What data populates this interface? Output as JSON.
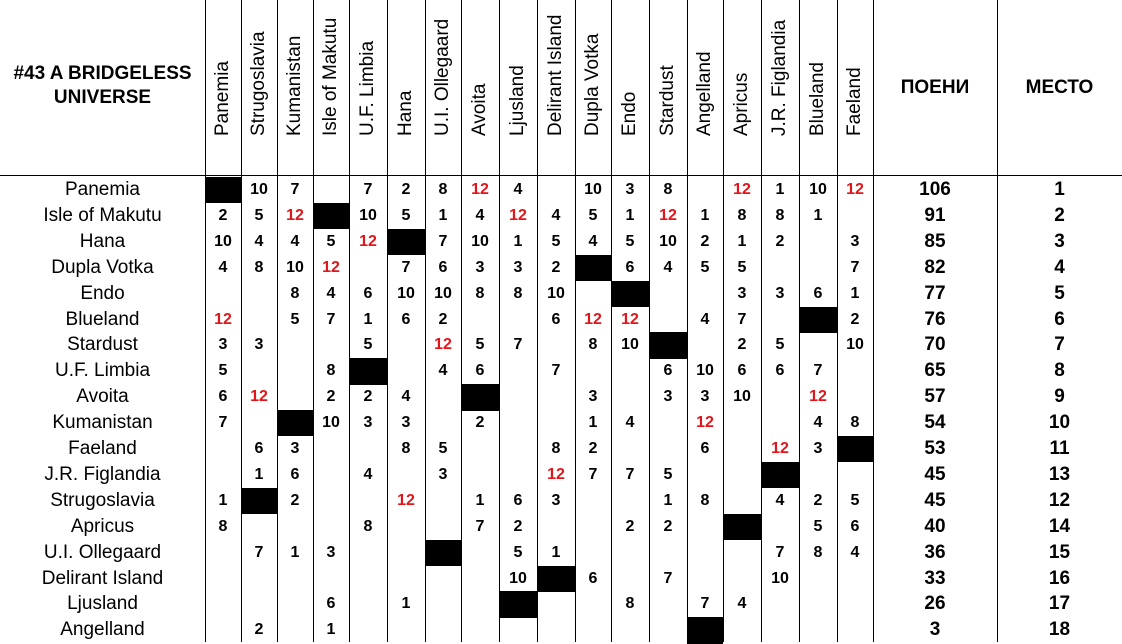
{
  "title": "#43 A BRIDGELESS UNIVERSE",
  "points_header": "ПОЕНИ",
  "place_header": "МЕСТО",
  "columns": [
    "Panemia",
    "Strugoslavia",
    "Kumanistan",
    "Isle of Makutu",
    "U.F. Limbia",
    "Hana",
    "U.I. Ollegaard",
    "Avoita",
    "Ljusland",
    "Delirant Island",
    "Dupla Votka",
    "Endo",
    "Stardust",
    "Angelland",
    "Apricus",
    "J.R. Figlandia",
    "Blueland",
    "Faeland"
  ],
  "rows": [
    {
      "name": "Panemia",
      "self_col": 0,
      "scores": [
        "",
        "10",
        "7",
        "",
        "7",
        "2",
        "8",
        "12",
        "4",
        "",
        "10",
        "3",
        "8",
        "",
        "12",
        "1",
        "10",
        "12"
      ],
      "total": "106",
      "place": "1"
    },
    {
      "name": "Isle of Makutu",
      "self_col": 3,
      "scores": [
        "2",
        "5",
        "12",
        "",
        "10",
        "5",
        "1",
        "4",
        "12",
        "4",
        "5",
        "1",
        "12",
        "1",
        "8",
        "8",
        "1",
        ""
      ],
      "total": "91",
      "place": "2"
    },
    {
      "name": "Hana",
      "self_col": 5,
      "scores": [
        "10",
        "4",
        "4",
        "5",
        "12",
        "",
        "7",
        "10",
        "1",
        "5",
        "4",
        "5",
        "10",
        "2",
        "1",
        "2",
        "",
        "3"
      ],
      "total": "85",
      "place": "3"
    },
    {
      "name": "Dupla Votka",
      "self_col": 10,
      "scores": [
        "4",
        "8",
        "10",
        "12",
        "",
        "7",
        "6",
        "3",
        "3",
        "2",
        "",
        "6",
        "4",
        "5",
        "5",
        "",
        "",
        "7"
      ],
      "total": "82",
      "place": "4"
    },
    {
      "name": "Endo",
      "self_col": 11,
      "scores": [
        "",
        "",
        "8",
        "4",
        "6",
        "10",
        "10",
        "8",
        "8",
        "10",
        "",
        "",
        "",
        "",
        "3",
        "3",
        "6",
        "1"
      ],
      "total": "77",
      "place": "5"
    },
    {
      "name": "Blueland",
      "self_col": 16,
      "scores": [
        "12",
        "",
        "5",
        "7",
        "1",
        "6",
        "2",
        "",
        "",
        "6",
        "12",
        "12",
        "",
        "4",
        "7",
        "",
        "",
        "2"
      ],
      "total": "76",
      "place": "6"
    },
    {
      "name": "Stardust",
      "self_col": 12,
      "scores": [
        "3",
        "3",
        "",
        "",
        "5",
        "",
        "12",
        "5",
        "7",
        "",
        "8",
        "10",
        "",
        "",
        "2",
        "5",
        "",
        "10"
      ],
      "total": "70",
      "place": "7"
    },
    {
      "name": "U.F. Limbia",
      "self_col": 4,
      "scores": [
        "5",
        "",
        "",
        "8",
        "",
        "",
        "4",
        "6",
        "",
        "7",
        "",
        "",
        "6",
        "10",
        "6",
        "6",
        "7",
        ""
      ],
      "total": "65",
      "place": "8"
    },
    {
      "name": "Avoita",
      "self_col": 7,
      "scores": [
        "6",
        "12",
        "",
        "2",
        "2",
        "4",
        "",
        "",
        "",
        "",
        "3",
        "",
        "3",
        "3",
        "10",
        "",
        "12",
        ""
      ],
      "total": "57",
      "place": "9"
    },
    {
      "name": "Kumanistan",
      "self_col": 2,
      "scores": [
        "7",
        "",
        "",
        "10",
        "3",
        "3",
        "",
        "2",
        "",
        "",
        "1",
        "4",
        "",
        "12",
        "",
        "",
        "4",
        "8"
      ],
      "total": "54",
      "place": "10"
    },
    {
      "name": "Faeland",
      "self_col": 17,
      "scores": [
        "",
        "6",
        "3",
        "",
        "",
        "8",
        "5",
        "",
        "",
        "8",
        "2",
        "",
        "",
        "6",
        "",
        "12",
        "3",
        ""
      ],
      "total": "53",
      "place": "11"
    },
    {
      "name": "J.R. Figlandia",
      "self_col": 15,
      "scores": [
        "",
        "1",
        "6",
        "",
        "4",
        "",
        "3",
        "",
        "",
        "12",
        "7",
        "7",
        "5",
        "",
        "",
        "",
        "",
        ""
      ],
      "total": "45",
      "place": "13"
    },
    {
      "name": "Strugoslavia",
      "self_col": 1,
      "scores": [
        "1",
        "",
        "2",
        "",
        "",
        "12",
        "",
        "1",
        "6",
        "3",
        "",
        "",
        "1",
        "8",
        "",
        "4",
        "2",
        "5"
      ],
      "total": "45",
      "place": "12"
    },
    {
      "name": "Apricus",
      "self_col": 14,
      "scores": [
        "8",
        "",
        "",
        "",
        "8",
        "",
        "",
        "7",
        "2",
        "",
        "",
        "2",
        "2",
        "",
        "",
        "",
        "5",
        "6"
      ],
      "total": "40",
      "place": "14"
    },
    {
      "name": "U.I. Ollegaard",
      "self_col": 6,
      "scores": [
        "",
        "7",
        "1",
        "3",
        "",
        "",
        "",
        "",
        "5",
        "1",
        "",
        "",
        "",
        "",
        "",
        "7",
        "8",
        "4"
      ],
      "total": "36",
      "place": "15"
    },
    {
      "name": "Delirant Island",
      "self_col": 9,
      "scores": [
        "",
        "",
        "",
        "",
        "",
        "",
        "",
        "",
        "10",
        "",
        "6",
        "",
        "7",
        "",
        "",
        "10",
        "",
        ""
      ],
      "total": "33",
      "place": "16"
    },
    {
      "name": "Ljusland",
      "self_col": 8,
      "scores": [
        "",
        "",
        "",
        "6",
        "",
        "1",
        "",
        "",
        "",
        "",
        "",
        "8",
        "",
        "7",
        "4",
        "",
        "",
        ""
      ],
      "total": "26",
      "place": "17"
    },
    {
      "name": "Angelland",
      "self_col": 13,
      "scores": [
        "",
        "2",
        "",
        "1",
        "",
        "",
        "",
        "",
        "",
        "",
        "",
        "",
        "",
        "",
        "",
        "",
        "",
        ""
      ],
      "total": "3",
      "place": "18"
    }
  ],
  "colors": {
    "twelve": "#e0161b",
    "self_cell": "#000000"
  }
}
